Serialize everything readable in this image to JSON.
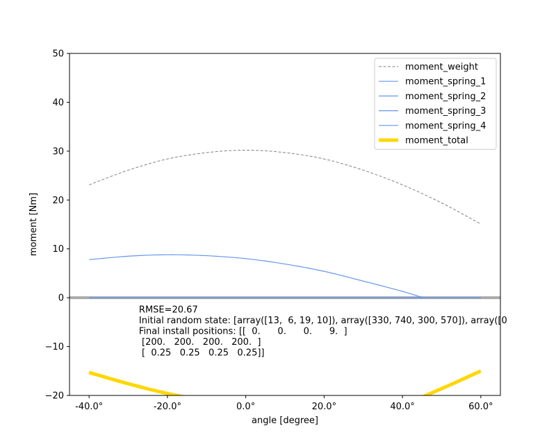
{
  "chart_data": {
    "type": "line",
    "xlabel": "angle [degree]",
    "ylabel": "moment [Nm]",
    "xlim": [
      -45,
      65
    ],
    "ylim": [
      -20,
      50
    ],
    "x_ticks": [
      -40,
      -20,
      0,
      20,
      40,
      60
    ],
    "x_tick_labels": [
      "-40.0°",
      "-20.0°",
      "0.0°",
      "20.0°",
      "40.0°",
      "60.0°"
    ],
    "y_ticks": [
      -20,
      -10,
      0,
      10,
      20,
      30,
      40,
      50
    ],
    "y_tick_labels": [
      "−20",
      "−10",
      "0",
      "10",
      "20",
      "30",
      "40",
      "50"
    ],
    "grid": false,
    "legend_position": "top-right",
    "horizontal_line": {
      "y": 0,
      "color": "#aaaaaa"
    },
    "series": [
      {
        "name": "moment_weight",
        "color": "#808080",
        "style": "dashed",
        "x": [
          -40,
          -30,
          -20,
          -10,
          0,
          10,
          20,
          30,
          40,
          50,
          60
        ],
        "y": [
          23.1,
          26.1,
          28.4,
          29.7,
          30.2,
          29.7,
          28.4,
          26.1,
          23.1,
          19.4,
          15.1
        ]
      },
      {
        "name": "moment_spring_1",
        "color": "#6495ed",
        "style": "solid",
        "x": [
          -40,
          -30,
          -20,
          -10,
          0,
          10,
          20,
          30,
          40,
          45.3
        ],
        "y": [
          7.8,
          8.5,
          8.8,
          8.6,
          8.0,
          6.9,
          5.4,
          3.4,
          1.3,
          0.0
        ]
      },
      {
        "name": "moment_spring_2",
        "color": "#6495ed",
        "style": "solid",
        "x": [
          -40,
          60
        ],
        "y": [
          0,
          0
        ]
      },
      {
        "name": "moment_spring_3",
        "color": "#6495ed",
        "style": "solid",
        "x": [
          -40,
          60
        ],
        "y": [
          0,
          0
        ]
      },
      {
        "name": "moment_spring_4",
        "color": "#6495ed",
        "style": "solid",
        "x": [
          -40,
          60
        ],
        "y": [
          0,
          0
        ]
      },
      {
        "name": "moment_total",
        "color": "#ffd700",
        "style": "thick",
        "x": [
          -40,
          -30,
          -20,
          -10,
          0,
          10,
          20,
          30,
          40,
          50,
          60
        ],
        "y": [
          -15.3,
          -17.6,
          -19.6,
          -21.1,
          -22.2,
          -22.8,
          -23.0,
          -22.7,
          -21.8,
          -18.6,
          -15.0
        ]
      }
    ],
    "annotation": {
      "x": -20,
      "y": -3,
      "lines": [
        "RMSE=20.67",
        "Initial random state: [array([13,  6, 19, 10]), array([330, 740, 300, 570]), array([0",
        "Final install positions: [[  0.      0.      0.      9.  ]",
        " [200.   200.   200.   200.  ]",
        " [  0.25   0.25   0.25   0.25]]"
      ]
    }
  }
}
